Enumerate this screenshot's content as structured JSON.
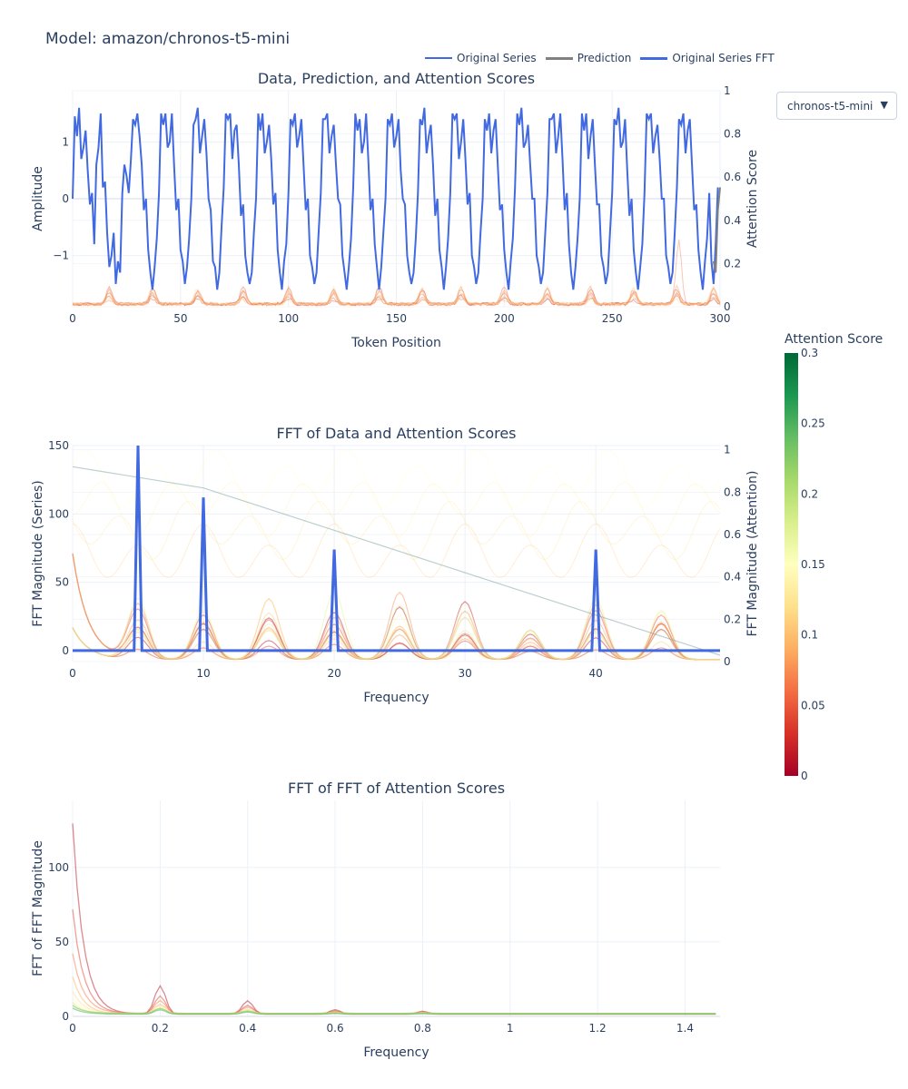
{
  "page": {
    "title": "Model: amazon/chronos-t5-mini"
  },
  "dropdown": {
    "selected": "chronos-t5-mini",
    "arrow_icon": "triangle-down-icon"
  },
  "legend": {
    "items": [
      {
        "label": "Original Series",
        "color": "#4169e1"
      },
      {
        "label": "Prediction",
        "color": "#808080"
      },
      {
        "label": "Original Series FFT",
        "color": "#4169e1"
      }
    ]
  },
  "colorbar": {
    "title": "Attention Score",
    "ticks": [
      "0",
      "0.05",
      "0.1",
      "0.15",
      "0.2",
      "0.25",
      "0.3"
    ],
    "colorscale": "RdYlGn",
    "range": [
      0,
      0.3
    ]
  },
  "chart_data": [
    {
      "type": "line",
      "title": "Data, Prediction, and Attention Scores",
      "xlabel": "Token Position",
      "ylabel": "Amplitude",
      "y2label": "Attention Score",
      "xlim": [
        0,
        300
      ],
      "ylim": [
        -1.9,
        1.9
      ],
      "y2lim": [
        0,
        1
      ],
      "xticks": [
        "0",
        "50",
        "100",
        "150",
        "200",
        "250",
        "300"
      ],
      "yticks": [
        "−1",
        "0",
        "1"
      ],
      "y2ticks": [
        "0",
        "0.2",
        "0.4",
        "0.6",
        "0.8",
        "1"
      ],
      "series": [
        {
          "name": "Original Series",
          "color": "#4169e1",
          "description": "seasonal signal with period 20 plus harmonics at periods 10 and 5, random noise",
          "x_start": 0,
          "x_end": 299,
          "values": [
            0.0,
            1.45,
            1.1,
            1.6,
            0.7,
            0.9,
            1.2,
            0.5,
            -0.1,
            0.1,
            -0.8,
            0.6,
            0.9,
            1.5,
            0.2,
            0.3,
            -0.6,
            -1.2,
            -1.0,
            -0.6,
            -1.5,
            -1.1,
            -1.3,
            0.1,
            0.6,
            0.4,
            0.1,
            0.7,
            1.4,
            1.3,
            1.5,
            1.1,
            0.6,
            -0.2,
            0.0,
            -0.9,
            -1.3,
            -1.6,
            -1.2,
            -0.7,
            0.1,
            1.5,
            1.3,
            1.5,
            0.9,
            1.0,
            1.5,
            0.6,
            -0.2,
            0.0,
            -0.9,
            -1.1,
            -1.5,
            -1.2,
            -0.7,
            0.0,
            1.3,
            1.4,
            1.6,
            0.8,
            1.1,
            1.4,
            0.8,
            0.0,
            -0.2,
            -1.1,
            -1.2,
            -1.6,
            -1.3,
            -0.5,
            0.2,
            1.5,
            1.4,
            1.5,
            0.7,
            1.2,
            1.3,
            0.6,
            -0.3,
            -0.1,
            -1.0,
            -1.3,
            -1.5,
            -1.3,
            -0.6,
            0.0,
            1.5,
            1.2,
            1.5,
            0.8,
            1.0,
            1.3,
            0.7,
            -0.1,
            0.1,
            -0.9,
            -1.3,
            -1.6,
            -1.1,
            -0.8,
            0.1,
            1.4,
            1.3,
            1.5,
            0.9,
            1.1,
            1.4,
            0.6,
            -0.2,
            0.0,
            -1.0,
            -1.2,
            -1.5,
            -1.3,
            -0.6,
            0.1,
            1.4,
            1.4,
            1.5,
            0.8,
            1.1,
            1.3,
            0.6,
            0.0,
            -0.1,
            -1.0,
            -1.3,
            -1.6,
            -1.2,
            -0.7,
            0.2,
            1.5,
            1.2,
            1.4,
            0.8,
            1.0,
            1.5,
            0.7,
            -0.2,
            0.0,
            -0.8,
            -1.2,
            -1.6,
            -1.2,
            -0.6,
            0.0,
            1.4,
            1.3,
            1.5,
            0.9,
            1.1,
            1.4,
            0.5,
            0.0,
            -0.1,
            -1.0,
            -1.3,
            -1.5,
            -1.3,
            -0.7,
            0.1,
            1.4,
            1.3,
            1.6,
            0.8,
            1.1,
            1.3,
            0.6,
            -0.3,
            0.0,
            -0.9,
            -1.2,
            -1.6,
            -1.2,
            -0.7,
            0.1,
            1.5,
            1.4,
            1.5,
            0.7,
            1.0,
            1.4,
            0.7,
            -0.1,
            0.1,
            -1.0,
            -1.2,
            -1.5,
            -1.3,
            -0.6,
            0.0,
            1.4,
            1.2,
            1.5,
            0.8,
            1.2,
            1.4,
            0.6,
            -0.2,
            -0.1,
            -0.9,
            -1.3,
            -1.6,
            -1.1,
            -0.7,
            0.2,
            1.5,
            1.3,
            1.6,
            0.9,
            1.0,
            1.3,
            0.6,
            0.0,
            0.0,
            -1.0,
            -1.2,
            -1.5,
            -1.3,
            -0.6,
            0.1,
            1.4,
            1.4,
            1.5,
            0.8,
            1.1,
            1.5,
            0.7,
            -0.2,
            0.1,
            -0.8,
            -1.3,
            -1.6,
            -1.2,
            -0.7,
            0.0,
            1.5,
            1.2,
            1.5,
            0.7,
            1.1,
            1.4,
            0.6,
            -0.1,
            -0.1,
            -1.0,
            -1.2,
            -1.5,
            -1.3,
            -0.6,
            0.1,
            1.4,
            1.3,
            1.6,
            0.9,
            1.0,
            1.4,
            0.5,
            -0.3,
            0.0,
            -0.9,
            -1.3,
            -1.6,
            -1.2,
            -0.8,
            0.1,
            1.5,
            1.4,
            1.5,
            0.8,
            1.1,
            1.3,
            0.7,
            0.0,
            0.0,
            -1.0,
            -1.2,
            -1.5,
            -1.3,
            -0.6,
            0.2,
            1.4,
            1.3,
            1.5,
            0.8,
            1.2,
            1.4,
            0.6,
            -0.2,
            -0.1,
            -0.9,
            -1.3,
            -1.6,
            -1.1,
            -0.7,
            0.1,
            -1.1,
            -1.5,
            -0.8,
            0.2
          ]
        },
        {
          "name": "Prediction",
          "color": "#808080",
          "x": [
            297,
            298,
            299,
            300
          ],
          "values": [
            -1.1,
            -1.3,
            -0.2,
            0.2
          ]
        }
      ],
      "attention_peaks_x": [
        17,
        37,
        58,
        79,
        100,
        121,
        142,
        162,
        180,
        200,
        220,
        240,
        260,
        280,
        297
      ]
    },
    {
      "type": "line",
      "title": "FFT of Data and Attention Scores",
      "xlabel": "Frequency",
      "ylabel": "FFT Magnitude (Series)",
      "y2label": "FFT Magnitude (Attention)",
      "xlim": [
        0,
        49.5
      ],
      "ylim": [
        -8,
        150
      ],
      "y2lim": [
        0,
        1.02
      ],
      "xticks": [
        "0",
        "10",
        "20",
        "30",
        "40"
      ],
      "yticks": [
        "0",
        "50",
        "100",
        "150"
      ],
      "y2ticks": [
        "0",
        "0.2",
        "0.4",
        "0.6",
        "0.8",
        "1"
      ],
      "series": [
        {
          "name": "Original Series FFT",
          "color": "#4169e1",
          "peaks": [
            {
              "x": 5,
              "y": 150
            },
            {
              "x": 10,
              "y": 112
            },
            {
              "x": 20,
              "y": 74
            },
            {
              "x": 40,
              "y": 74
            }
          ],
          "baseline": 0
        }
      ],
      "attention_harmonic_spacing": 5
    },
    {
      "type": "line",
      "title": "FFT of FFT of Attention Scores",
      "xlabel": "Frequency",
      "ylabel": "FFT of FFT Magnitude",
      "xlim": [
        0,
        1.48
      ],
      "ylim": [
        0,
        145
      ],
      "xticks": [
        "0",
        "0.2",
        "0.4",
        "0.6",
        "0.8",
        "1",
        "1.2",
        "1.4"
      ],
      "yticks": [
        "0",
        "50",
        "100"
      ],
      "peaks": [
        {
          "x": 0,
          "y": 128
        },
        {
          "x": 0.2,
          "y": 19
        },
        {
          "x": 0.4,
          "y": 9
        },
        {
          "x": 0.6,
          "y": 3
        },
        {
          "x": 0.8,
          "y": 2
        }
      ]
    }
  ]
}
